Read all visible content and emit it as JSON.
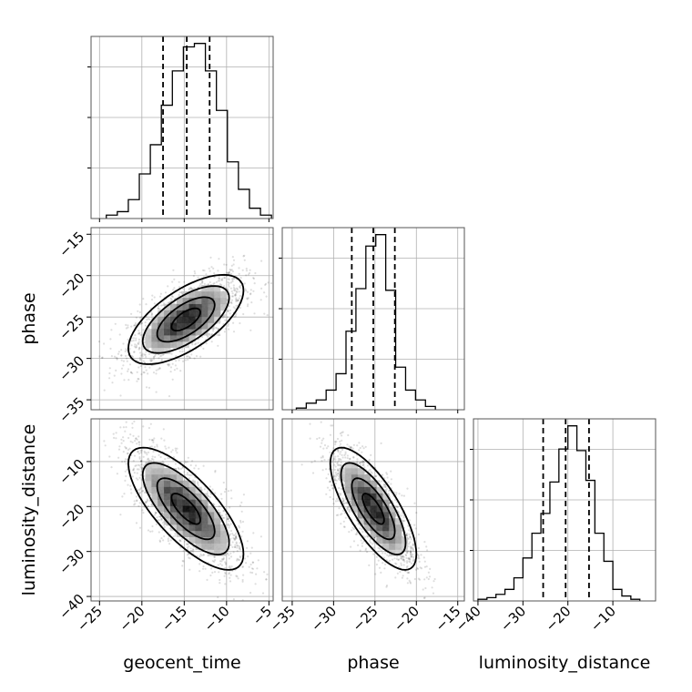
{
  "chart_data": {
    "type": "corner",
    "parameters": [
      "geocent_time",
      "phase",
      "luminosity_distance"
    ],
    "axis_labels": {
      "geocent_time": "geocent_time",
      "phase": "phase",
      "luminosity_distance": "luminosity_distance"
    },
    "ranges": {
      "geocent_time": [
        -26,
        -4.5
      ],
      "phase": [
        -36.2,
        -14.2
      ],
      "luminosity_distance": [
        -41,
        -0.5
      ]
    },
    "ticks": {
      "geocent_time": [
        -25,
        -20,
        -15,
        -10,
        -5
      ],
      "phase": [
        -35,
        -30,
        -25,
        -20,
        -15
      ],
      "luminosity_distance": [
        -40,
        -30,
        -20,
        -10
      ]
    },
    "grid": true,
    "histograms": [
      {
        "param": "geocent_time",
        "bin_edges": [
          -24.2,
          -22.9,
          -21.6,
          -20.3,
          -19.0,
          -17.7,
          -16.4,
          -15.1,
          -13.8,
          -12.5,
          -11.2,
          -9.9,
          -8.6,
          -7.3,
          -6.0,
          -4.7
        ],
        "counts": [
          0.02,
          0.04,
          0.11,
          0.26,
          0.43,
          0.66,
          0.86,
          1.0,
          1.02,
          0.86,
          0.63,
          0.33,
          0.17,
          0.06,
          0.02
        ],
        "quantiles": [
          -17.5,
          -14.7,
          -12.0
        ]
      },
      {
        "param": "phase",
        "bin_edges": [
          -34.5,
          -33.3,
          -32.1,
          -30.9,
          -29.7,
          -28.5,
          -27.3,
          -26.1,
          -24.9,
          -23.7,
          -22.5,
          -21.3,
          -20.1,
          -18.9,
          -17.7
        ],
        "counts": [
          0.01,
          0.04,
          0.06,
          0.12,
          0.22,
          0.48,
          0.74,
          1.0,
          1.07,
          0.73,
          0.26,
          0.12,
          0.06,
          0.02
        ],
        "quantiles": [
          -27.8,
          -25.2,
          -22.6
        ]
      },
      {
        "param": "luminosity_distance",
        "bin_edges": [
          -40,
          -38,
          -36,
          -34,
          -32,
          -30,
          -28,
          -26,
          -24,
          -22,
          -20,
          -18,
          -16,
          -14,
          -12,
          -10,
          -8,
          -6,
          -4
        ],
        "counts": [
          0.01,
          0.02,
          0.04,
          0.07,
          0.14,
          0.26,
          0.41,
          0.53,
          0.72,
          0.92,
          1.06,
          0.91,
          0.73,
          0.41,
          0.24,
          0.07,
          0.03,
          0.01
        ],
        "quantiles": [
          -25.5,
          -20.5,
          -15.3
        ]
      }
    ],
    "scatter_2d": [
      {
        "x_param": "geocent_time",
        "y_param": "phase",
        "mean": [
          -14.8,
          -25.3
        ],
        "std": [
          3.4,
          2.7
        ],
        "correlation": 0.65
      },
      {
        "x_param": "geocent_time",
        "y_param": "luminosity_distance",
        "mean": [
          -14.8,
          -20.5
        ],
        "std": [
          3.4,
          6.8
        ],
        "correlation": -0.74
      },
      {
        "x_param": "phase",
        "y_param": "luminosity_distance",
        "mean": [
          -25.2,
          -20.5
        ],
        "std": [
          2.6,
          6.8
        ],
        "correlation": -0.74
      }
    ],
    "contour_sigma_levels": [
      0.5,
      1.0,
      1.5,
      2.0
    ]
  }
}
